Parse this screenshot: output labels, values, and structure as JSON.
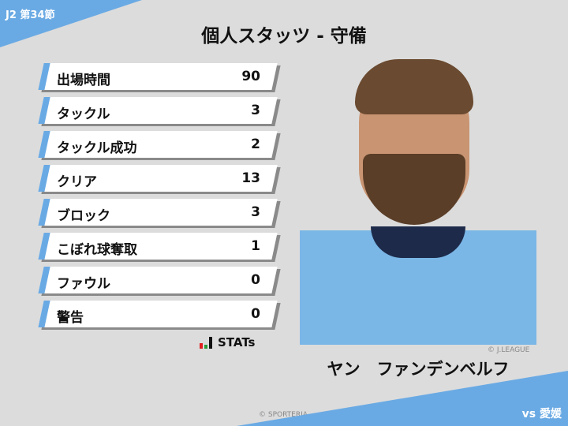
{
  "header": {
    "round": "J2 第34節",
    "title": "個人スタッツ - 守備",
    "opponent": "vs 愛媛"
  },
  "stats": [
    {
      "label": "出場時間",
      "value": "90"
    },
    {
      "label": "タックル",
      "value": "3"
    },
    {
      "label": "タックル成功",
      "value": "2"
    },
    {
      "label": "クリア",
      "value": "13"
    },
    {
      "label": "ブロック",
      "value": "3"
    },
    {
      "label": "こぼれ球奪取",
      "value": "1"
    },
    {
      "label": "ファウル",
      "value": "0"
    },
    {
      "label": "警告",
      "value": "0"
    }
  ],
  "logo": {
    "text": "STATs",
    "colors": [
      "#e02020",
      "#2a9a3a",
      "#111111"
    ]
  },
  "player": {
    "name": "ヤン　ファンデンベルフ",
    "photo_credit": "© J.LEAGUE"
  },
  "footer": {
    "copyright": "© SPORTERIA"
  },
  "colors": {
    "accent": "#6aaae4",
    "background": "#dcdcdc"
  }
}
